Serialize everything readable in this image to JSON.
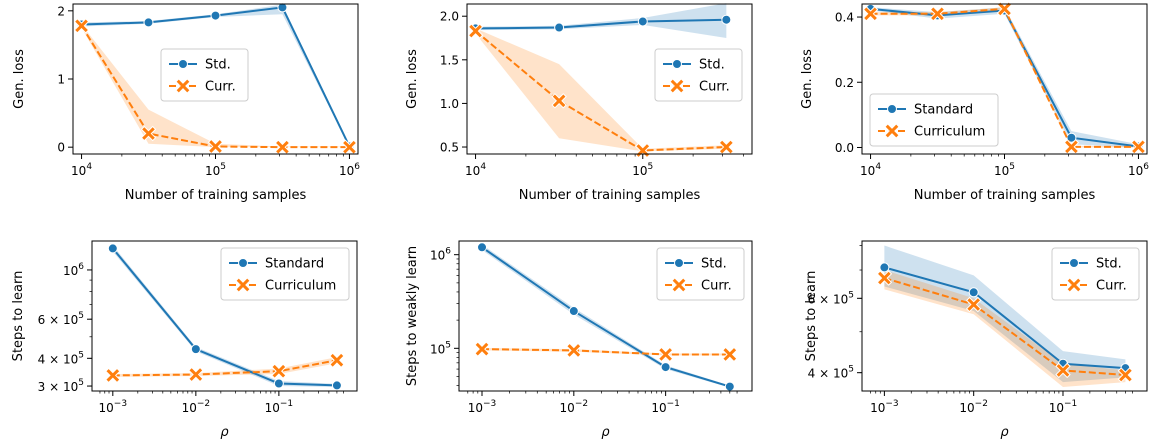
{
  "colors": {
    "standard": "#1f77b4",
    "curriculum": "#ff7f0e"
  },
  "chart_data": [
    {
      "id": "p1",
      "type": "line",
      "xlabel": "Number of training samples",
      "ylabel": "Gen. loss",
      "xscale": "log",
      "yscale": "linear",
      "xlim": [
        10000.0,
        1000000.0
      ],
      "ylim": [
        -0.1,
        2.1
      ],
      "xticks": [
        {
          "v": 10000.0,
          "base": "10",
          "exp": "4"
        },
        {
          "v": 100000.0,
          "base": "10",
          "exp": "5"
        },
        {
          "v": 1000000.0,
          "base": "10",
          "exp": "6"
        }
      ],
      "yticks": [
        {
          "v": 0,
          "label": "0"
        },
        {
          "v": 1,
          "label": "1"
        },
        {
          "v": 2,
          "label": "2"
        }
      ],
      "legend": "center",
      "series": [
        {
          "name": "Std.",
          "color": "standard",
          "marker": "circle",
          "dash": false,
          "points": [
            [
              10000.0,
              1.8
            ],
            [
              31600.0,
              1.83
            ],
            [
              100000.0,
              1.93
            ],
            [
              316000.0,
              2.05
            ],
            [
              1000000.0,
              0.01
            ]
          ],
          "band": [
            [
              10000.0,
              1.77,
              1.83
            ],
            [
              31600.0,
              1.81,
              1.85
            ],
            [
              100000.0,
              1.91,
              1.95
            ],
            [
              316000.0,
              1.95,
              2.09
            ],
            [
              1000000.0,
              0.0,
              0.03
            ]
          ]
        },
        {
          "name": "Curr.",
          "color": "curriculum",
          "marker": "x",
          "dash": true,
          "points": [
            [
              10000.0,
              1.78
            ],
            [
              31600.0,
              0.2
            ],
            [
              100000.0,
              0.01
            ],
            [
              316000.0,
              0.0
            ],
            [
              1000000.0,
              0.0
            ]
          ],
          "band": [
            [
              10000.0,
              1.75,
              1.8
            ],
            [
              31600.0,
              0.05,
              0.55
            ],
            [
              100000.0,
              0.0,
              0.05
            ],
            [
              316000.0,
              0.0,
              0.01
            ],
            [
              1000000.0,
              0.0,
              0.01
            ]
          ]
        }
      ]
    },
    {
      "id": "p2",
      "type": "line",
      "xlabel": "Number of training samples",
      "ylabel": "Gen. loss",
      "xscale": "log",
      "yscale": "linear",
      "xlim": [
        10000.0,
        400000.0
      ],
      "ylim": [
        0.42,
        2.14
      ],
      "xticks": [
        {
          "v": 10000.0,
          "base": "10",
          "exp": "4"
        },
        {
          "v": 100000.0,
          "base": "10",
          "exp": "5"
        }
      ],
      "yticks": [
        {
          "v": 0.5,
          "label": "0.5"
        },
        {
          "v": 1.0,
          "label": "1.0"
        },
        {
          "v": 1.5,
          "label": "1.5"
        },
        {
          "v": 2.0,
          "label": "2.0"
        }
      ],
      "legend": "center-right",
      "series": [
        {
          "name": "Std.",
          "color": "standard",
          "marker": "circle",
          "dash": false,
          "points": [
            [
              10000.0,
              1.86
            ],
            [
              31600.0,
              1.87
            ],
            [
              100000.0,
              1.94
            ],
            [
              316000.0,
              1.96
            ]
          ],
          "band": [
            [
              10000.0,
              1.84,
              1.88
            ],
            [
              31600.0,
              1.85,
              1.89
            ],
            [
              100000.0,
              1.9,
              1.98
            ],
            [
              316000.0,
              1.75,
              2.15
            ]
          ]
        },
        {
          "name": "Curr.",
          "color": "curriculum",
          "marker": "x",
          "dash": true,
          "points": [
            [
              10000.0,
              1.83
            ],
            [
              31600.0,
              1.03
            ],
            [
              100000.0,
              0.46
            ],
            [
              316000.0,
              0.5
            ]
          ],
          "band": [
            [
              10000.0,
              1.8,
              1.86
            ],
            [
              31600.0,
              0.6,
              1.45
            ],
            [
              100000.0,
              0.45,
              0.48
            ],
            [
              316000.0,
              0.48,
              0.52
            ]
          ]
        }
      ]
    },
    {
      "id": "p3",
      "type": "line",
      "xlabel": "Number of training samples",
      "ylabel": "Gen. loss",
      "xscale": "log",
      "yscale": "linear",
      "xlim": [
        10000.0,
        1000000.0
      ],
      "ylim": [
        -0.02,
        0.44
      ],
      "xticks": [
        {
          "v": 10000.0,
          "base": "10",
          "exp": "4"
        },
        {
          "v": 100000.0,
          "base": "10",
          "exp": "5"
        },
        {
          "v": 1000000.0,
          "base": "10",
          "exp": "6"
        }
      ],
      "yticks": [
        {
          "v": 0.0,
          "label": "0.0"
        },
        {
          "v": 0.2,
          "label": "0.2"
        },
        {
          "v": 0.4,
          "label": "0.4"
        }
      ],
      "legend": "lower-left",
      "series": [
        {
          "name": "Standard",
          "color": "standard",
          "marker": "circle",
          "dash": false,
          "points": [
            [
              10000.0,
              0.425
            ],
            [
              31600.0,
              0.405
            ],
            [
              100000.0,
              0.42
            ],
            [
              316000.0,
              0.03
            ],
            [
              1000000.0,
              0.003
            ]
          ],
          "band": [
            [
              10000.0,
              0.42,
              0.43
            ],
            [
              31600.0,
              0.395,
              0.415
            ],
            [
              100000.0,
              0.41,
              0.43
            ],
            [
              316000.0,
              0.01,
              0.05
            ],
            [
              1000000.0,
              0.0,
              0.01
            ]
          ]
        },
        {
          "name": "Curriculum",
          "color": "curriculum",
          "marker": "x",
          "dash": true,
          "points": [
            [
              10000.0,
              0.41
            ],
            [
              31600.0,
              0.41
            ],
            [
              100000.0,
              0.425
            ],
            [
              316000.0,
              0.002
            ],
            [
              1000000.0,
              0.002
            ]
          ],
          "band": [
            [
              10000.0,
              0.405,
              0.415
            ],
            [
              31600.0,
              0.405,
              0.415
            ],
            [
              100000.0,
              0.42,
              0.43
            ],
            [
              316000.0,
              0.0,
              0.005
            ],
            [
              1000000.0,
              0.0,
              0.005
            ]
          ]
        }
      ]
    },
    {
      "id": "p4",
      "type": "line",
      "xlabel": "ρ",
      "ylabel": "Steps to learn",
      "xscale": "log",
      "yscale": "log",
      "xlim": [
        0.0007,
        0.7
      ],
      "ylim": [
        285000.0,
        1350000.0
      ],
      "xticks": [
        {
          "v": 0.001,
          "base": "10",
          "exp": "−3"
        },
        {
          "v": 0.01,
          "base": "10",
          "exp": "−2"
        },
        {
          "v": 0.1,
          "base": "10",
          "exp": "−1"
        }
      ],
      "yticks": [
        {
          "v": 1000000.0,
          "pre": "",
          "base": "10",
          "exp": "6"
        },
        {
          "v": 600000.0,
          "pre": "6 × ",
          "base": "10",
          "exp": "5"
        },
        {
          "v": 400000.0,
          "pre": "4 × ",
          "base": "10",
          "exp": "5"
        },
        {
          "v": 300000.0,
          "pre": "3 × ",
          "base": "10",
          "exp": "5"
        }
      ],
      "legend": "upper-right",
      "series": [
        {
          "name": "Standard",
          "color": "standard",
          "marker": "circle",
          "dash": false,
          "points": [
            [
              0.001,
              1250000.0
            ],
            [
              0.01,
              440000.0
            ],
            [
              0.1,
              308000.0
            ],
            [
              0.5,
              302000.0
            ]
          ],
          "band": [
            [
              0.001,
              1210000.0,
              1290000.0
            ],
            [
              0.01,
              430000.0,
              450000.0
            ],
            [
              0.1,
              300000.0,
              316000.0
            ],
            [
              0.5,
              297000.0,
              307000.0
            ]
          ]
        },
        {
          "name": "Curriculum",
          "color": "curriculum",
          "marker": "x",
          "dash": true,
          "points": [
            [
              0.001,
              335000.0
            ],
            [
              0.01,
              338000.0
            ],
            [
              0.1,
              350000.0
            ],
            [
              0.5,
              392000.0
            ]
          ],
          "band": [
            [
              0.001,
              330000.0,
              340000.0
            ],
            [
              0.01,
              333000.0,
              343000.0
            ],
            [
              0.1,
              340000.0,
              360000.0
            ],
            [
              0.5,
              380000.0,
              405000.0
            ]
          ]
        }
      ]
    },
    {
      "id": "p5",
      "type": "line",
      "xlabel": "ρ",
      "ylabel": "Steps to weakly learn",
      "xscale": "log",
      "yscale": "log",
      "xlim": [
        0.0007,
        0.7
      ],
      "ylim": [
        35000.0,
        1400000.0
      ],
      "xticks": [
        {
          "v": 0.001,
          "base": "10",
          "exp": "−3"
        },
        {
          "v": 0.01,
          "base": "10",
          "exp": "−2"
        },
        {
          "v": 0.1,
          "base": "10",
          "exp": "−1"
        }
      ],
      "yticks": [
        {
          "v": 1000000.0,
          "pre": "",
          "base": "10",
          "exp": "6"
        },
        {
          "v": 100000.0,
          "pre": "",
          "base": "10",
          "exp": "5"
        }
      ],
      "legend": "upper-right",
      "series": [
        {
          "name": "Std.",
          "color": "standard",
          "marker": "circle",
          "dash": false,
          "points": [
            [
              0.001,
              1200000.0
            ],
            [
              0.01,
              250000.0
            ],
            [
              0.1,
              63000.0
            ],
            [
              0.5,
              39000.0
            ]
          ],
          "band": [
            [
              0.001,
              1120000.0,
              1280000.0
            ],
            [
              0.01,
              230000.0,
              270000.0
            ],
            [
              0.1,
              60000.0,
              66000.0
            ],
            [
              0.5,
              38000.0,
              40000.0
            ]
          ]
        },
        {
          "name": "Curr.",
          "color": "curriculum",
          "marker": "x",
          "dash": true,
          "points": [
            [
              0.001,
              98000.0
            ],
            [
              0.01,
              95000.0
            ],
            [
              0.1,
              86000.0
            ],
            [
              0.5,
              86000.0
            ]
          ],
          "band": [
            [
              0.001,
              95000.0,
              101000.0
            ],
            [
              0.01,
              92000.0,
              98000.0
            ],
            [
              0.1,
              84000.0,
              88000.0
            ],
            [
              0.5,
              84000.0,
              88000.0
            ]
          ]
        }
      ]
    },
    {
      "id": "p6",
      "type": "line",
      "xlabel": "ρ",
      "ylabel": "Steps to learn",
      "xscale": "log",
      "yscale": "log",
      "xlim": [
        0.0007,
        0.7
      ],
      "ylim": [
        362000.0,
        820000.0
      ],
      "xticks": [
        {
          "v": 0.001,
          "base": "10",
          "exp": "−3"
        },
        {
          "v": 0.01,
          "base": "10",
          "exp": "−2"
        },
        {
          "v": 0.1,
          "base": "10",
          "exp": "−1"
        }
      ],
      "yticks": [
        {
          "v": 600000.0,
          "pre": "6 × ",
          "base": "10",
          "exp": "5"
        },
        {
          "v": 400000.0,
          "pre": "4 × ",
          "base": "10",
          "exp": "5"
        }
      ],
      "legend": "upper-right",
      "series": [
        {
          "name": "Std.",
          "color": "standard",
          "marker": "circle",
          "dash": false,
          "points": [
            [
              0.001,
              710000.0
            ],
            [
              0.01,
              620000.0
            ],
            [
              0.1,
              420000.0
            ],
            [
              0.5,
              410000.0
            ]
          ],
          "band": [
            [
              0.001,
              640000.0,
              800000.0
            ],
            [
              0.01,
              560000.0,
              680000.0
            ],
            [
              0.1,
              380000.0,
              450000.0
            ],
            [
              0.5,
              390000.0,
              430000.0
            ]
          ]
        },
        {
          "name": "Curr.",
          "color": "curriculum",
          "marker": "x",
          "dash": true,
          "points": [
            [
              0.001,
              670000.0
            ],
            [
              0.01,
              580000.0
            ],
            [
              0.1,
              405000.0
            ],
            [
              0.5,
              395000.0
            ]
          ],
          "band": [
            [
              0.001,
              630000.0,
              700000.0
            ],
            [
              0.01,
              550000.0,
              600000.0
            ],
            [
              0.1,
              370000.0,
              420000.0
            ],
            [
              0.5,
              380000.0,
              405000.0
            ]
          ]
        }
      ]
    }
  ]
}
